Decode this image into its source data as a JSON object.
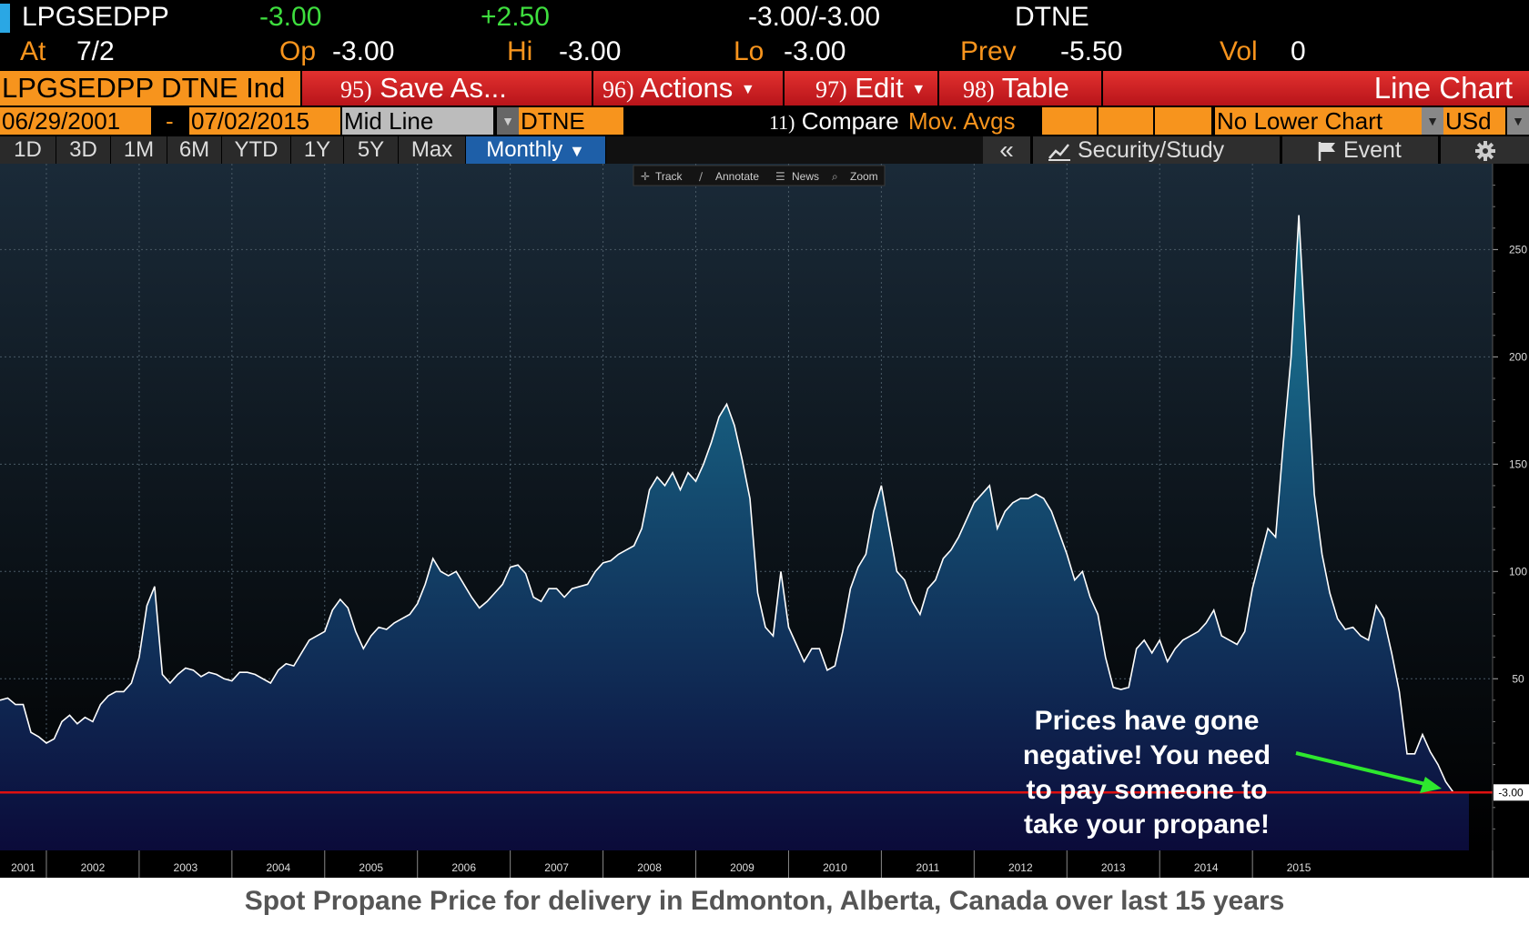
{
  "header": {
    "ticker": "LPGSEDPP",
    "last": "-3.00",
    "change": "+2.50",
    "bid_ask": "-3.00/-3.00",
    "exchange": "DTNE",
    "at_label": "At",
    "at_value": "7/2",
    "op_label": "Op",
    "op_value": "-3.00",
    "hi_label": "Hi",
    "hi_value": "-3.00",
    "lo_label": "Lo",
    "lo_value": "-3.00",
    "prev_label": "Prev",
    "prev_value": "-5.50",
    "vol_label": "Vol",
    "vol_value": "0"
  },
  "toolbar": {
    "security": "LPGSEDPP DTNE Ind",
    "save_num": "95)",
    "save_label": "Save As...",
    "actions_num": "96)",
    "actions_label": "Actions",
    "edit_num": "97)",
    "edit_label": "Edit",
    "table_num": "98)",
    "table_label": "Table",
    "chart_type": "Line Chart"
  },
  "settings": {
    "start_date": "06/29/2001",
    "dash": "-",
    "end_date": "07/02/2015",
    "line_type": "Mid Line",
    "source": "DTNE",
    "compare_num": "11)",
    "compare_label": "Compare",
    "mov_avgs": "Mov. Avgs",
    "lower_chart": "No Lower Chart",
    "currency": "USd"
  },
  "periods": [
    "1D",
    "3D",
    "1M",
    "6M",
    "YTD",
    "1Y",
    "5Y",
    "Max"
  ],
  "period_selected": "Monthly",
  "right_tools": {
    "collapse": "«",
    "security_study": "Security/Study",
    "event": "Event"
  },
  "chart_toolbar": [
    "Track",
    "Annotate",
    "News",
    "Zoom"
  ],
  "colors": {
    "line": "#ffffff",
    "fill_top": "#1b7e9a",
    "fill_bottom": "#0b0b3a",
    "plot_bg_top": "#1a2a38",
    "plot_bg_bottom": "#000000",
    "last_price_line": "#e01010",
    "arrow": "#2ee82e"
  },
  "chart_data": {
    "type": "area",
    "x_start": "2001-07",
    "x_step": "1 month",
    "x_ticks": [
      "2001",
      "2002",
      "2003",
      "2004",
      "2005",
      "2006",
      "2007",
      "2008",
      "2009",
      "2010",
      "2011",
      "2012",
      "2013",
      "2014",
      "2015"
    ],
    "y_ticks": [
      50,
      100,
      150,
      200,
      250
    ],
    "ylim": [
      -30,
      290
    ],
    "last_value": -3.0,
    "last_value_label": "-3.00",
    "values": [
      40,
      41,
      38,
      38,
      25,
      23,
      20,
      22,
      30,
      33,
      29,
      32,
      30,
      38,
      42,
      44,
      44,
      48,
      60,
      84,
      93,
      52,
      48,
      52,
      55,
      54,
      51,
      53,
      52,
      50,
      49,
      53,
      53,
      52,
      50,
      48,
      54,
      57,
      56,
      62,
      68,
      70,
      72,
      82,
      87,
      83,
      72,
      64,
      70,
      74,
      73,
      76,
      78,
      80,
      85,
      94,
      106,
      100,
      98,
      100,
      94,
      88,
      83,
      86,
      90,
      94,
      102,
      103,
      99,
      88,
      86,
      92,
      92,
      88,
      92,
      93,
      94,
      100,
      104,
      105,
      108,
      110,
      112,
      120,
      138,
      144,
      140,
      146,
      138,
      146,
      142,
      150,
      160,
      172,
      178,
      168,
      152,
      134,
      90,
      74,
      70,
      100,
      74,
      66,
      58,
      64,
      64,
      54,
      56,
      72,
      92,
      102,
      108,
      128,
      140,
      120,
      100,
      96,
      86,
      80,
      92,
      96,
      106,
      110,
      116,
      124,
      132,
      136,
      140,
      120,
      128,
      132,
      134,
      134,
      136,
      134,
      128,
      118,
      108,
      96,
      100,
      88,
      80,
      60,
      46,
      45,
      46,
      64,
      68,
      62,
      68,
      58,
      64,
      68,
      70,
      72,
      76,
      82,
      70,
      68,
      66,
      72,
      92,
      106,
      120,
      116,
      160,
      200,
      266,
      200,
      136,
      108,
      90,
      78,
      73,
      74,
      70,
      68,
      84,
      78,
      62,
      44,
      15,
      15,
      24,
      16,
      10,
      2,
      -3,
      -3,
      -3
    ]
  },
  "annotation": {
    "line1": "Prices have gone",
    "line2": "negative!  You need",
    "line3": "to pay someone to",
    "line4": "take your propane!"
  },
  "caption": "Spot Propane Price for delivery in Edmonton, Alberta, Canada over last 15 years"
}
